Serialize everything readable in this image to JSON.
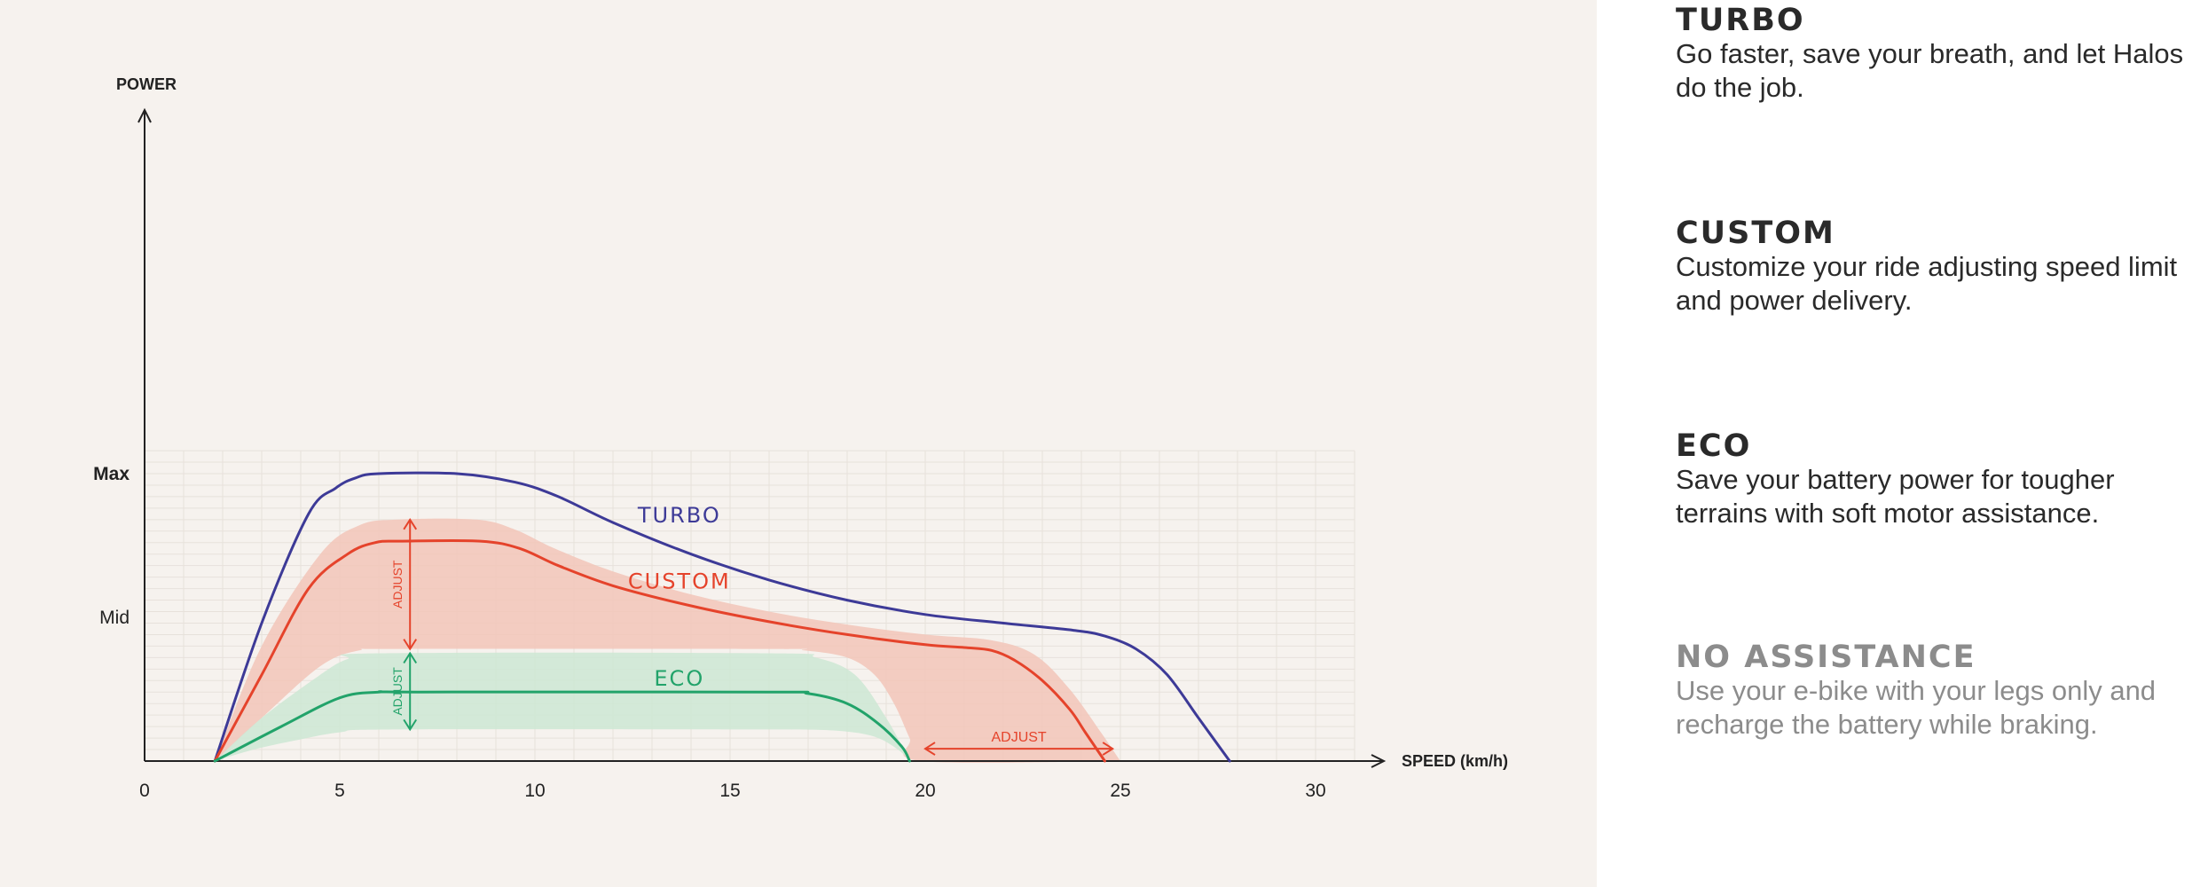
{
  "chart_data": {
    "type": "line",
    "xlabel": "SPEED (km/h)",
    "ylabel": "POWER",
    "xlim": [
      0,
      32
    ],
    "x_ticks": [
      0,
      5,
      10,
      15,
      20,
      25,
      30
    ],
    "y_levels": [
      {
        "label": "Max",
        "value": 100
      },
      {
        "label": "Mid",
        "value": 50
      }
    ],
    "ylim": [
      0,
      112
    ],
    "grid": true,
    "series": [
      {
        "name": "TURBO",
        "color": "#3d3a97",
        "x": [
          1.8,
          3.0,
          4.2,
          4.9,
          5.4,
          6.0,
          8.0,
          9.5,
          10.6,
          12.0,
          14.0,
          16.0,
          18.0,
          20.0,
          22.0,
          23.8,
          24.6,
          25.4,
          26.2,
          27.0,
          27.8
        ],
        "y": [
          0,
          48,
          86,
          95,
          98.5,
          100,
          100,
          97,
          92,
          83,
          72,
          63,
          56,
          51,
          48,
          45.5,
          43.5,
          39,
          30,
          15,
          0
        ]
      },
      {
        "name": "CUSTOM",
        "color": "#e5432b",
        "x": [
          1.8,
          3.0,
          4.2,
          5.2,
          5.9,
          6.6,
          8.6,
          9.6,
          10.6,
          12.0,
          14.0,
          16.0,
          18.0,
          20.0,
          21.0,
          21.7,
          22.3,
          23.0,
          23.7,
          24.1,
          24.6
        ],
        "y": [
          0,
          30,
          60,
          72,
          76,
          76.5,
          76.5,
          74,
          68,
          61,
          54,
          48.5,
          44,
          40.5,
          39.5,
          38.5,
          35,
          28,
          18,
          10,
          0
        ]
      },
      {
        "name": "ECO",
        "color": "#22a36a",
        "x": [
          1.8,
          3.5,
          5.0,
          6.0,
          7.0,
          16.0,
          17.0,
          18.0,
          18.8,
          19.4,
          19.6
        ],
        "y": [
          0,
          12,
          22,
          24,
          24,
          24,
          23.5,
          20,
          13,
          5,
          0
        ]
      }
    ],
    "bands": [
      {
        "name": "CUSTOM adjust range",
        "color": "#f2c5b9",
        "upper_x": [
          1.8,
          3.0,
          4.5,
          5.5,
          6.5,
          8.5,
          9.5,
          10.5,
          12.0,
          14.0,
          16.0,
          18.0,
          20.0,
          21.7,
          22.8,
          23.7,
          24.5,
          25.0
        ],
        "upper_y": [
          0,
          40,
          72,
          82,
          84,
          84,
          80.5,
          74,
          66,
          58,
          52,
          47.5,
          44,
          42,
          37,
          25,
          10,
          0
        ],
        "lower_x": [
          25.0,
          19.9,
          19.6,
          19.2,
          18.7,
          18.0,
          16.9,
          16.0,
          6.5,
          5.5,
          4.5,
          3.0,
          1.8
        ],
        "lower_y": [
          0,
          0,
          8,
          20,
          30,
          36,
          38.5,
          39,
          39,
          38.5,
          33,
          15,
          0
        ]
      },
      {
        "name": "ECO adjust range",
        "color": "#cce7d4",
        "upper_x": [
          1.8,
          3.0,
          4.5,
          5.2,
          6.0,
          16.0,
          17.2,
          18.2,
          19.0,
          19.6
        ],
        "upper_y": [
          0,
          15,
          30,
          35.5,
          37.5,
          37.5,
          36,
          30,
          15,
          0
        ],
        "lower_x": [
          19.6,
          19.3,
          18.7,
          17.8,
          16.5,
          16.0,
          6.5,
          5.0,
          3.8,
          2.8,
          1.8
        ],
        "lower_y": [
          0,
          4,
          8.5,
          10.5,
          11,
          11,
          11,
          10,
          7,
          4,
          0
        ]
      }
    ],
    "annotations": [
      {
        "text": "ADJUST",
        "x": 6.8,
        "y1": 84,
        "y2": 39,
        "direction": "vertical",
        "color": "#e5432b"
      },
      {
        "text": "ADJUST",
        "x": 6.8,
        "y1": 37.5,
        "y2": 11,
        "direction": "vertical",
        "color": "#22a36a"
      },
      {
        "text": "ADJUST",
        "y": 4.3,
        "x1": 20.0,
        "x2": 24.8,
        "direction": "horizontal",
        "color": "#e5432b"
      }
    ],
    "series_labels": [
      {
        "text": "TURBO",
        "x": 13.7,
        "y": 83,
        "color": "#3d3a97"
      },
      {
        "text": "CUSTOM",
        "x": 13.7,
        "y": 60,
        "color": "#e5432b"
      },
      {
        "text": "ECO",
        "x": 13.7,
        "y": 26.3,
        "color": "#22a36a"
      }
    ]
  },
  "legend": {
    "modes": [
      {
        "title": "TURBO",
        "description": "Go faster, save your breath, and let Halos do the job."
      },
      {
        "title": "CUSTOM",
        "description": "Customize your ride adjusting speed limit and power delivery."
      },
      {
        "title": "ECO",
        "description": "Save your battery power for tougher terrains with soft motor assistance."
      },
      {
        "title": "NO ASSISTANCE",
        "description": "Use your e-bike with your legs only and recharge the battery while braking."
      }
    ]
  }
}
